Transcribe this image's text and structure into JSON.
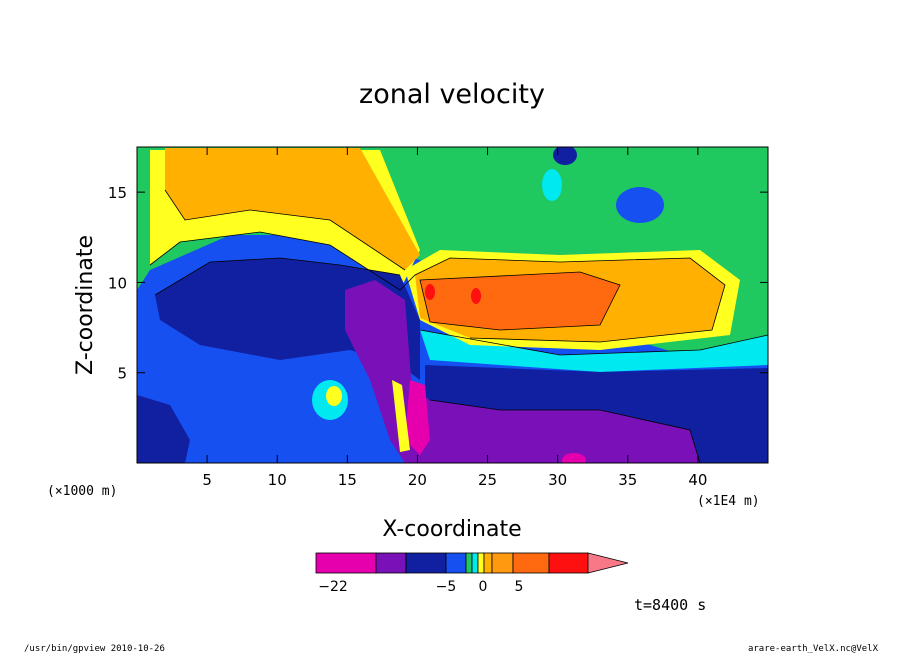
{
  "chart_data": {
    "type": "contour",
    "title": "zonal velocity",
    "xlabel": "X-coordinate",
    "ylabel": "Z-coordinate",
    "x_unit_label": "(×1E4 m)",
    "z_unit_label": "(×1000 m)",
    "xlim": [
      0,
      45
    ],
    "ylim": [
      0,
      17.5
    ],
    "xticks": [
      5,
      10,
      15,
      20,
      25,
      30,
      35,
      40
    ],
    "yticks": [
      5,
      10,
      15
    ],
    "grid": false,
    "colorbar": {
      "labels": [
        {
          "value": -22,
          "text": "−22"
        },
        {
          "value": -5,
          "text": "−5"
        },
        {
          "value": 0,
          "text": "0"
        },
        {
          "value": 5,
          "text": "5"
        }
      ],
      "colors": [
        "#e600ad",
        "#7a10b8",
        "#1020a0",
        "#1650f0",
        "#20c860",
        "#00e8f0",
        "#ffff20",
        "#ffb000",
        "#ff9a10",
        "#ff6a10",
        "#ff1010",
        "#f87888"
      ],
      "extend": "max"
    },
    "time_label": "t=8400 s"
  },
  "footer": {
    "left": "/usr/bin/gpview  2010-10-26",
    "right": "arare-earth_VelX.nc@VelX"
  }
}
